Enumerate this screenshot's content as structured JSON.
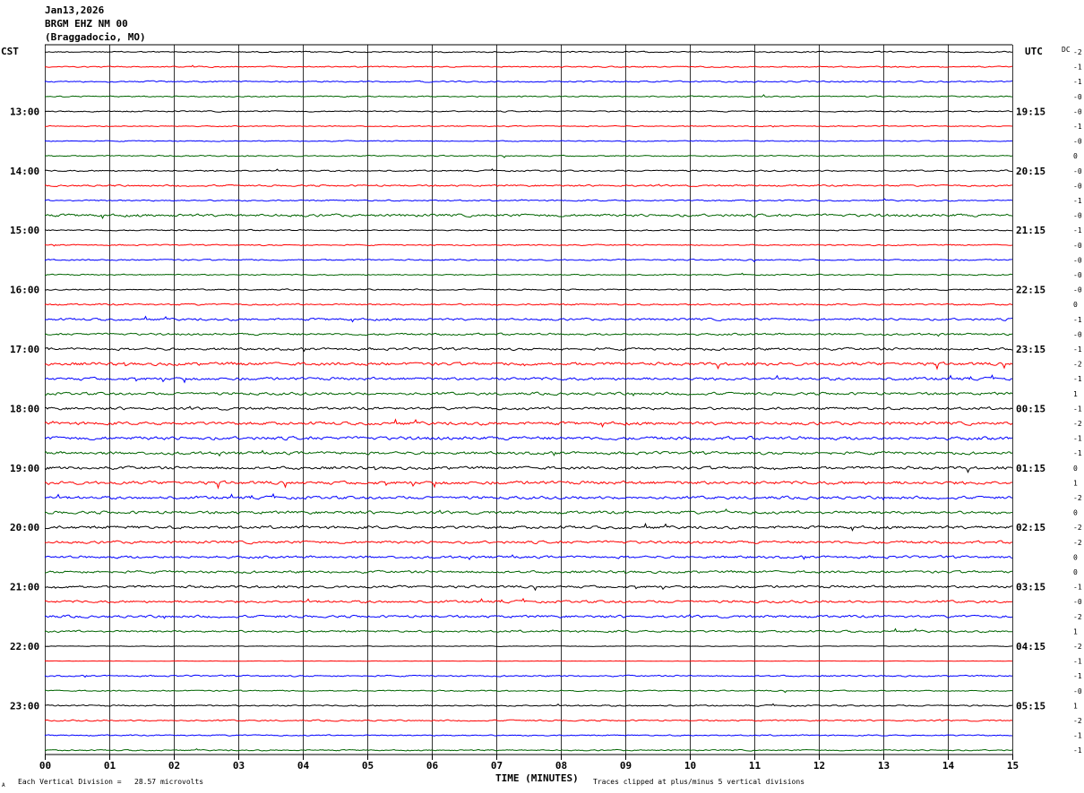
{
  "header": {
    "date": "Jan13,2026",
    "station": "BRGM EHZ NM 00",
    "location": "(Braggadocio, MO)"
  },
  "left_timezone": "CST",
  "right_timezone": "UTC",
  "dc_label": "DC",
  "footer": {
    "scale_note": "Each Vertical Division =   28.57 microvolts",
    "clip_note": "Traces clipped at plus/minus 5 vertical divisions",
    "corner_mark": "A"
  },
  "chart_data": {
    "type": "line",
    "title": "",
    "xlabel": "TIME (MINUTES)",
    "ylabel": "",
    "x_ticks": [
      "00",
      "01",
      "02",
      "03",
      "04",
      "05",
      "06",
      "07",
      "08",
      "09",
      "10",
      "11",
      "12",
      "13",
      "14",
      "15"
    ],
    "xlim": [
      0,
      15
    ],
    "grid": "vertical",
    "trace_colors": [
      "#000000",
      "#ff0000",
      "#0000ff",
      "#006400"
    ],
    "trace_count": 48,
    "left_hour_labels": [
      "13:00",
      "14:00",
      "15:00",
      "16:00",
      "17:00",
      "18:00",
      "19:00",
      "20:00",
      "21:00",
      "22:00",
      "23:00"
    ],
    "right_hour_labels": [
      "19:15",
      "20:15",
      "21:15",
      "22:15",
      "23:15",
      "00:15",
      "01:15",
      "02:15",
      "03:15",
      "04:15",
      "05:15"
    ],
    "dc_offsets": [
      "-2",
      "-1",
      "-1",
      "-0",
      "-0",
      "-1",
      "-0",
      "0",
      "-0",
      "-0",
      "-1",
      "-0",
      "-1",
      "-0",
      "-0",
      "-0",
      "-0",
      "0",
      "-1",
      "-0",
      "-1",
      "-2",
      "-1",
      "1",
      "-1",
      "-2",
      "-1",
      "-1",
      "0",
      "1",
      "-2",
      "0",
      "-2",
      "-2",
      "0",
      "0",
      "-1",
      "-0",
      "-2",
      "1",
      "-2",
      "-1",
      "-1",
      "-0",
      "1",
      "-2",
      "-1",
      "-1"
    ],
    "amplitude_profile": [
      0.6,
      0.6,
      0.7,
      0.6,
      0.6,
      0.5,
      0.5,
      0.6,
      0.7,
      0.8,
      0.7,
      1.3,
      0.6,
      0.6,
      0.7,
      0.6,
      0.6,
      0.8,
      1.1,
      1.0,
      1.2,
      1.5,
      1.4,
      1.3,
      1.3,
      1.5,
      1.6,
      1.4,
      1.4,
      1.6,
      1.4,
      1.4,
      1.4,
      1.3,
      1.2,
      1.2,
      1.2,
      1.2,
      1.2,
      1.0,
      0.3,
      0.2,
      0.7,
      0.6,
      0.7,
      0.7,
      0.6,
      0.6
    ]
  }
}
